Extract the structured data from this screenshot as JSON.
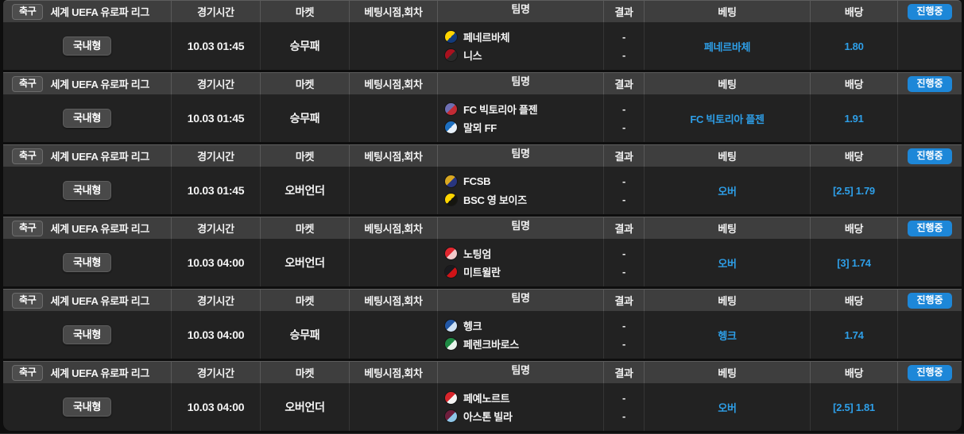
{
  "labels": {
    "sport": "축구",
    "league": "세계 UEFA 유로파 리그",
    "status": "진행중",
    "row_type": "국내형"
  },
  "columns": {
    "time": "경기시간",
    "market": "마켓",
    "bet_time": "베팅시점,회차",
    "team": "팀명",
    "result": "결과",
    "bet": "베팅",
    "odds": "배당"
  },
  "colors": {
    "status_badge_blue": "#1d87d8",
    "pick_text_blue": "#2e9fe8",
    "header_bg": "#3e3e3e",
    "row_bg": "#222222"
  },
  "matches": [
    {
      "time": "10.03 01:45",
      "market": "승무패",
      "teams": [
        {
          "name": "페네르바체",
          "logo_colors": [
            "#ffd400",
            "#123a7a"
          ]
        },
        {
          "name": "니스",
          "logo_colors": [
            "#a9111e",
            "#2b2b2b"
          ]
        }
      ],
      "results": [
        "-",
        "-"
      ],
      "bet": "페네르바체",
      "odds": "1.80"
    },
    {
      "time": "10.03 01:45",
      "market": "승무패",
      "teams": [
        {
          "name": "FC 빅토리아 플젠",
          "logo_colors": [
            "#6e6fb3",
            "#c22b35"
          ]
        },
        {
          "name": "말뫼 FF",
          "logo_colors": [
            "#1d6fc0",
            "#e8f1fa"
          ]
        }
      ],
      "results": [
        "-",
        "-"
      ],
      "bet": "FC 빅토리아 플젠",
      "odds": "1.91"
    },
    {
      "time": "10.03 01:45",
      "market": "오버언더",
      "teams": [
        {
          "name": "FCSB",
          "logo_colors": [
            "#d9a821",
            "#28357f"
          ]
        },
        {
          "name": "BSC 영 보이즈",
          "logo_colors": [
            "#ffd500",
            "#15150f"
          ]
        }
      ],
      "results": [
        "-",
        "-"
      ],
      "bet": "오버",
      "odds": "[2.5] 1.79"
    },
    {
      "time": "10.03 04:00",
      "market": "오버언더",
      "teams": [
        {
          "name": "노팅엄",
          "logo_colors": [
            "#e0262e",
            "#f3c9ca"
          ]
        },
        {
          "name": "미트윌란",
          "logo_colors": [
            "#1a1a1e",
            "#d01317"
          ]
        }
      ],
      "results": [
        "-",
        "-"
      ],
      "bet": "오버",
      "odds": "[3] 1.74"
    },
    {
      "time": "10.03 04:00",
      "market": "승무패",
      "teams": [
        {
          "name": "헹크",
          "logo_colors": [
            "#2257a5",
            "#cfe2f5"
          ]
        },
        {
          "name": "페렌크바로스",
          "logo_colors": [
            "#1f8a44",
            "#e9f4ec"
          ]
        }
      ],
      "results": [
        "-",
        "-"
      ],
      "bet": "헹크",
      "odds": "1.74"
    },
    {
      "time": "10.03 04:00",
      "market": "오버언더",
      "teams": [
        {
          "name": "페예노르트",
          "logo_colors": [
            "#d8252b",
            "#f4f4f4"
          ]
        },
        {
          "name": "아스톤 빌라",
          "logo_colors": [
            "#6e1e3c",
            "#8ec6e8"
          ]
        }
      ],
      "results": [
        "-",
        "-"
      ],
      "bet": "오버",
      "odds": "[2.5] 1.81"
    }
  ]
}
